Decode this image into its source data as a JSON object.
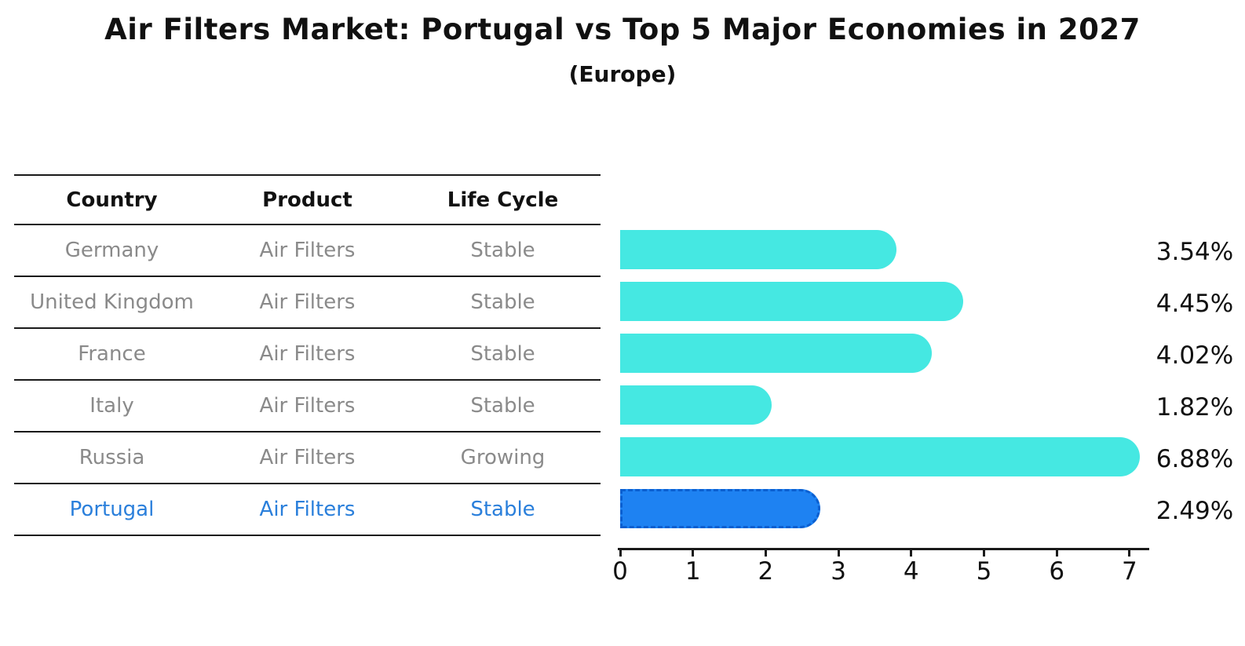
{
  "title": "Air Filters Market: Portugal vs Top 5 Major Economies in 2027",
  "subtitle": "(Europe)",
  "table": {
    "headers": [
      "Country",
      "Product",
      "Life Cycle"
    ],
    "rows": [
      {
        "country": "Germany",
        "product": "Air Filters",
        "life_cycle": "Stable"
      },
      {
        "country": "United Kingdom",
        "product": "Air Filters",
        "life_cycle": "Stable"
      },
      {
        "country": "France",
        "product": "Air Filters",
        "life_cycle": "Stable"
      },
      {
        "country": "Italy",
        "product": "Air Filters",
        "life_cycle": "Stable"
      },
      {
        "country": "Russia",
        "product": "Air Filters",
        "life_cycle": "Growing"
      },
      {
        "country": "Portugal",
        "product": "Air Filters",
        "life_cycle": "Stable"
      }
    ]
  },
  "chart_data": {
    "type": "bar",
    "orientation": "horizontal",
    "categories": [
      "Germany",
      "United Kingdom",
      "France",
      "Italy",
      "Russia",
      "Portugal"
    ],
    "values": [
      3.54,
      4.45,
      4.02,
      1.82,
      6.88,
      2.49
    ],
    "value_labels": [
      "3.54%",
      "4.45%",
      "4.02%",
      "1.82%",
      "6.88%",
      "2.49%"
    ],
    "xlabel": "",
    "ylabel": "",
    "xlim": [
      0,
      7
    ],
    "xticks": [
      0,
      1,
      2,
      3,
      4,
      5,
      6,
      7
    ],
    "grid": false,
    "legend": false,
    "bar_color": "#45e8e2",
    "highlight_color": "#1e82f2",
    "highlight_border_color": "#0b5fd0",
    "highlight_index": 5,
    "highlight_text_color": "#2a7fdb"
  }
}
